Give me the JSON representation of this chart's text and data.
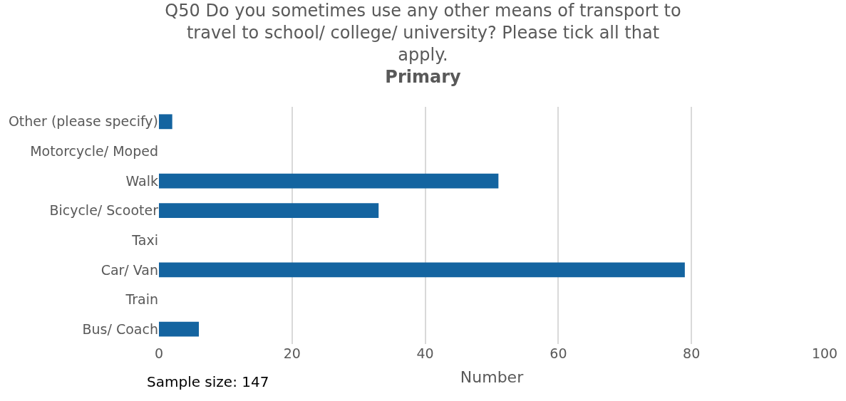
{
  "chart_data": {
    "type": "bar",
    "orientation": "horizontal",
    "title": "Q50 Do you sometimes use any other means of transport to travel to school/ college/ university? Please tick all that apply.",
    "subtitle": "Primary",
    "categories": [
      "Other (please specify)",
      "Motorcycle/ Moped",
      "Walk",
      "Bicycle/ Scooter",
      "Taxi",
      "Car/ Van",
      "Train",
      "Bus/ Coach"
    ],
    "values": [
      2,
      0,
      51,
      33,
      0,
      79,
      0,
      6
    ],
    "color": "#1464a0",
    "xlabel": "Number",
    "xlim": [
      0,
      100
    ],
    "xticks": [
      0,
      20,
      40,
      60,
      80,
      100
    ],
    "grid": "x",
    "annotations": [
      "Sample size: 147"
    ]
  }
}
